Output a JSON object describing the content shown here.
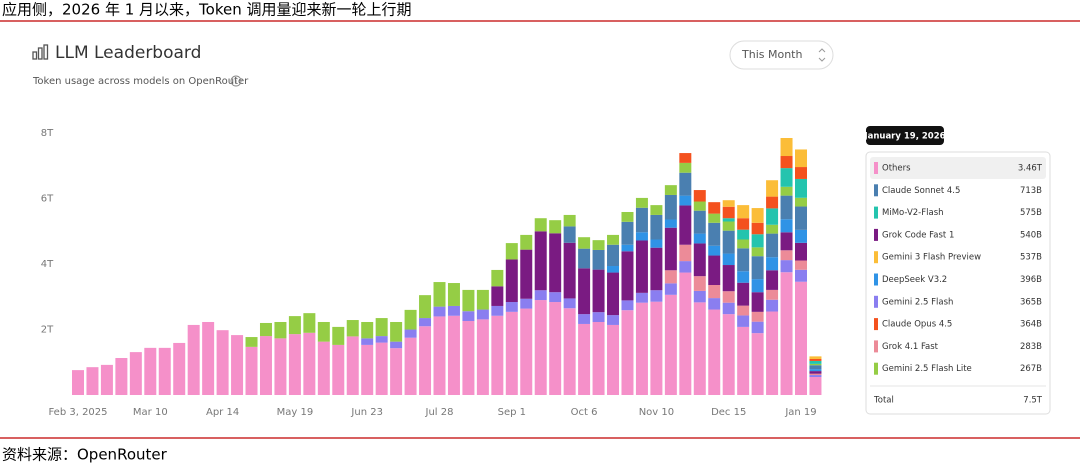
{
  "header": "应用侧，2026 年 1 月以来，Token 调用量迎来新一轮上行期",
  "source": "资料来源：OpenRouter",
  "chart_data": {
    "type": "stacked_bar",
    "title": "LLM Leaderboard",
    "subtitle": "Token usage across models on OpenRouter",
    "period_selector": "This Month",
    "categories": [
      "Feb 3, 2025",
      null,
      null,
      null,
      null,
      "Mar 10",
      null,
      null,
      null,
      null,
      "Apr 14",
      null,
      null,
      null,
      null,
      "May 19",
      null,
      null,
      null,
      null,
      "Jun 23",
      null,
      null,
      null,
      null,
      "Jul 28",
      null,
      null,
      null,
      null,
      "Sep 1",
      null,
      null,
      null,
      null,
      "Oct 6",
      null,
      null,
      null,
      null,
      "Nov 10",
      null,
      null,
      null,
      null,
      "Dec 15",
      null,
      null,
      null,
      null,
      "Jan 19",
      null
    ],
    "ylim": [
      0,
      8.4
    ],
    "yticks": [
      {
        "value": 2,
        "label": "2T"
      },
      {
        "value": 4,
        "label": "4T"
      },
      {
        "value": 6,
        "label": "6T"
      },
      {
        "value": 8,
        "label": "8T"
      }
    ],
    "grid": false,
    "series": [
      {
        "name": "Others",
        "color": "#f590c9",
        "values": [
          0.76,
          0.85,
          0.92,
          1.13,
          1.31,
          1.44,
          1.44,
          1.59,
          2.14,
          2.23,
          1.98,
          1.83,
          1.47,
          1.8,
          1.73,
          1.86,
          1.9,
          1.63,
          1.53,
          1.79,
          1.53,
          1.6,
          1.43,
          1.75,
          2.1,
          2.4,
          2.42,
          2.26,
          2.31,
          2.42,
          2.54,
          2.64,
          2.9,
          2.84,
          2.65,
          2.17,
          2.23,
          2.14,
          2.59,
          2.82,
          2.85,
          3.06,
          3.74,
          2.83,
          2.61,
          2.47,
          2.08,
          1.89,
          2.55,
          3.75,
          3.46,
          0.55
        ]
      },
      {
        "name": "Claude Sonnet 4.5",
        "color": "#4a7fb0",
        "values": [
          0,
          0,
          0,
          0,
          0,
          0,
          0,
          0,
          0,
          0,
          0,
          0,
          0,
          0,
          0,
          0,
          0,
          0,
          0,
          0,
          0,
          0,
          0,
          0,
          0,
          0,
          0,
          0,
          0,
          0,
          0,
          0,
          0,
          0,
          0.5,
          0.6,
          0.6,
          0.65,
          0.7,
          0.75,
          0.75,
          0.75,
          0.7,
          0.7,
          0.7,
          0.7,
          0.7,
          0.7,
          0.72,
          0.72,
          0.713,
          0.12
        ]
      },
      {
        "name": "MiMo-V2-Flash",
        "color": "#24c4ae",
        "values": [
          0,
          0,
          0,
          0,
          0,
          0,
          0,
          0,
          0,
          0,
          0,
          0,
          0,
          0,
          0,
          0,
          0,
          0,
          0,
          0,
          0,
          0,
          0,
          0,
          0,
          0,
          0,
          0,
          0,
          0,
          0,
          0,
          0,
          0,
          0,
          0,
          0,
          0,
          0,
          0,
          0,
          0,
          0,
          0,
          0,
          0.1,
          0.3,
          0.4,
          0.5,
          0.57,
          0.575,
          0.09
        ]
      },
      {
        "name": "Grok Code Fast 1",
        "color": "#7a1b82",
        "values": [
          0,
          0,
          0,
          0,
          0,
          0,
          0,
          0,
          0,
          0,
          0,
          0,
          0,
          0,
          0,
          0,
          0,
          0,
          0,
          0,
          0,
          0,
          0,
          0,
          0,
          0,
          0,
          0,
          0,
          0.6,
          1.3,
          1.5,
          1.8,
          1.8,
          1.7,
          1.4,
          1.3,
          1.3,
          1.5,
          1.6,
          1.3,
          1.3,
          1.2,
          1.0,
          0.9,
          0.8,
          0.7,
          0.6,
          0.6,
          0.55,
          0.54,
          0.08
        ]
      },
      {
        "name": "Gemini 3 Flash Preview",
        "color": "#fbbd38",
        "values": [
          0,
          0,
          0,
          0,
          0,
          0,
          0,
          0,
          0,
          0,
          0,
          0,
          0,
          0,
          0,
          0,
          0,
          0,
          0,
          0,
          0,
          0,
          0,
          0,
          0,
          0,
          0,
          0,
          0,
          0,
          0,
          0,
          0,
          0,
          0,
          0,
          0,
          0,
          0,
          0,
          0,
          0,
          0,
          0,
          0,
          0.2,
          0.4,
          0.45,
          0.5,
          0.55,
          0.537,
          0.08
        ]
      },
      {
        "name": "DeepSeek V3.2",
        "color": "#2f93e6",
        "values": [
          0,
          0,
          0,
          0,
          0,
          0,
          0,
          0,
          0,
          0,
          0,
          0,
          0,
          0,
          0,
          0,
          0,
          0,
          0,
          0,
          0,
          0,
          0,
          0,
          0,
          0,
          0,
          0,
          0,
          0,
          0,
          0,
          0,
          0,
          0,
          0,
          0,
          0.2,
          0.2,
          0.25,
          0.25,
          0.25,
          0.3,
          0.3,
          0.3,
          0.35,
          0.35,
          0.4,
          0.4,
          0.4,
          0.396,
          0.06
        ]
      },
      {
        "name": "Gemini 2.5 Flash",
        "color": "#8a7ef0",
        "values": [
          0,
          0,
          0,
          0,
          0,
          0,
          0,
          0,
          0,
          0,
          0,
          0,
          0,
          0,
          0,
          0,
          0,
          0,
          0,
          0,
          0.2,
          0.2,
          0.2,
          0.25,
          0.25,
          0.3,
          0.3,
          0.3,
          0.3,
          0.3,
          0.3,
          0.3,
          0.3,
          0.3,
          0.3,
          0.3,
          0.3,
          0.3,
          0.3,
          0.3,
          0.35,
          0.35,
          0.35,
          0.35,
          0.35,
          0.35,
          0.35,
          0.35,
          0.36,
          0.37,
          0.365,
          0.06
        ]
      },
      {
        "name": "Claude Opus 4.5",
        "color": "#f4511e",
        "values": [
          0,
          0,
          0,
          0,
          0,
          0,
          0,
          0,
          0,
          0,
          0,
          0,
          0,
          0,
          0,
          0,
          0,
          0,
          0,
          0,
          0,
          0,
          0,
          0,
          0,
          0,
          0,
          0,
          0,
          0,
          0,
          0,
          0,
          0,
          0,
          0,
          0,
          0,
          0,
          0,
          0,
          0,
          0.3,
          0.35,
          0.35,
          0.35,
          0.35,
          0.35,
          0.36,
          0.37,
          0.364,
          0.06
        ]
      },
      {
        "name": "Grok 4.1 Fast",
        "color": "#ec8b98",
        "values": [
          0,
          0,
          0,
          0,
          0,
          0,
          0,
          0,
          0,
          0,
          0,
          0,
          0,
          0,
          0,
          0,
          0,
          0,
          0,
          0,
          0,
          0,
          0,
          0,
          0,
          0,
          0,
          0,
          0,
          0,
          0,
          0,
          0,
          0,
          0,
          0,
          0,
          0,
          0,
          0,
          0,
          0.4,
          0.5,
          0.45,
          0.4,
          0.35,
          0.3,
          0.3,
          0.3,
          0.3,
          0.283,
          0.04
        ]
      },
      {
        "name": "Gemini 2.5 Flash Lite",
        "color": "#95cd45",
        "values": [
          0,
          0,
          0,
          0,
          0,
          0,
          0,
          0,
          0,
          0,
          0,
          0,
          0.3,
          0.4,
          0.5,
          0.55,
          0.6,
          0.6,
          0.55,
          0.5,
          0.5,
          0.55,
          0.6,
          0.6,
          0.7,
          0.75,
          0.7,
          0.65,
          0.6,
          0.5,
          0.5,
          0.45,
          0.4,
          0.4,
          0.35,
          0.35,
          0.3,
          0.3,
          0.3,
          0.3,
          0.3,
          0.3,
          0.3,
          0.28,
          0.28,
          0.28,
          0.27,
          0.27,
          0.27,
          0.27,
          0.267,
          0.04
        ]
      }
    ],
    "tooltip": {
      "title": "January 19, 2026",
      "rows": [
        {
          "value": 3.46,
          "label": "3.46T"
        },
        {
          "value": 0.713,
          "label": "713B"
        },
        {
          "value": 0.575,
          "label": "575B"
        },
        {
          "value": 0.54,
          "label": "540B"
        },
        {
          "value": 0.537,
          "label": "537B"
        },
        {
          "value": 0.396,
          "label": "396B"
        },
        {
          "value": 0.365,
          "label": "365B"
        },
        {
          "value": 0.364,
          "label": "364B"
        },
        {
          "value": 0.283,
          "label": "283B"
        },
        {
          "value": 0.267,
          "label": "267B"
        }
      ],
      "total_label": "Total",
      "total": {
        "value": 7.5,
        "label": "7.5T"
      }
    }
  }
}
